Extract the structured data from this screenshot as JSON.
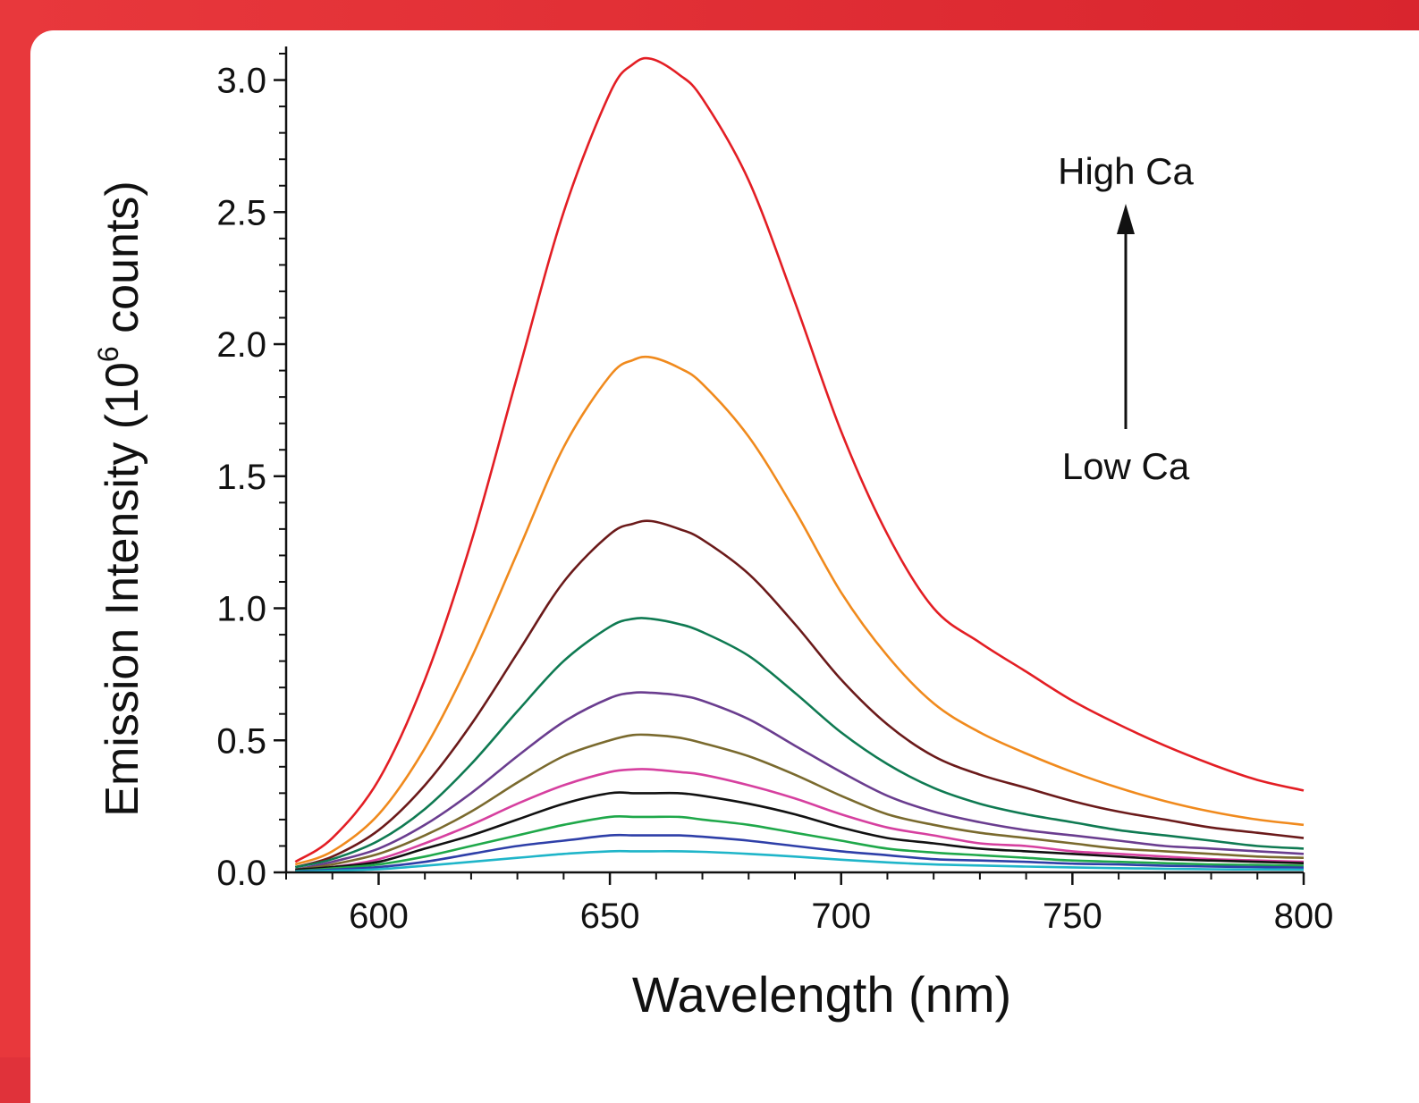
{
  "colors": {
    "frame": "#e0323a",
    "panel": "#ffffff",
    "axis": "#111111"
  },
  "chart_data": {
    "type": "line",
    "xlabel": "Wavelength (nm)",
    "ylabel_main": "Emission Intensity (10",
    "ylabel_sup": "6",
    "ylabel_tail": " counts)",
    "xlim": [
      580,
      800
    ],
    "ylim": [
      0,
      3.1
    ],
    "xticks": [
      600,
      650,
      700,
      750,
      800
    ],
    "xtick_labels": [
      "600",
      "650",
      "700",
      "750",
      "800"
    ],
    "yticks": [
      0,
      0.5,
      1.0,
      1.5,
      2.0,
      2.5,
      3.0
    ],
    "ytick_labels": [
      "0.0",
      "0.5",
      "1.0",
      "1.5",
      "2.0",
      "2.5",
      "3.0"
    ],
    "grid": false,
    "annotations": {
      "high": "High Ca",
      "low": "Low Ca",
      "arrow_direction": "up"
    },
    "x": [
      582,
      590,
      600,
      610,
      620,
      630,
      640,
      650,
      655,
      659,
      665,
      670,
      680,
      690,
      700,
      710,
      720,
      730,
      740,
      750,
      760,
      770,
      780,
      790,
      800
    ],
    "series": [
      {
        "color": "#e31e24",
        "values": [
          0.04,
          0.13,
          0.35,
          0.73,
          1.25,
          1.88,
          2.5,
          2.95,
          3.06,
          3.08,
          3.02,
          2.93,
          2.62,
          2.16,
          1.67,
          1.28,
          1.0,
          0.87,
          0.76,
          0.65,
          0.56,
          0.48,
          0.41,
          0.35,
          0.31
        ]
      },
      {
        "color": "#f08a1d",
        "values": [
          0.03,
          0.08,
          0.22,
          0.47,
          0.81,
          1.21,
          1.61,
          1.88,
          1.94,
          1.95,
          1.91,
          1.85,
          1.65,
          1.37,
          1.06,
          0.82,
          0.64,
          0.53,
          0.45,
          0.38,
          0.32,
          0.27,
          0.23,
          0.2,
          0.18
        ]
      },
      {
        "color": "#6b1a1a",
        "values": [
          0.02,
          0.06,
          0.16,
          0.33,
          0.56,
          0.83,
          1.1,
          1.28,
          1.32,
          1.33,
          1.3,
          1.26,
          1.13,
          0.94,
          0.73,
          0.56,
          0.44,
          0.37,
          0.32,
          0.27,
          0.23,
          0.2,
          0.17,
          0.15,
          0.13
        ]
      },
      {
        "color": "#0f7a52",
        "values": [
          0.02,
          0.05,
          0.12,
          0.24,
          0.41,
          0.61,
          0.8,
          0.93,
          0.96,
          0.96,
          0.94,
          0.91,
          0.82,
          0.68,
          0.53,
          0.41,
          0.32,
          0.26,
          0.22,
          0.19,
          0.16,
          0.14,
          0.12,
          0.1,
          0.09
        ]
      },
      {
        "color": "#6a3d8f",
        "values": [
          0.01,
          0.04,
          0.09,
          0.18,
          0.3,
          0.44,
          0.57,
          0.66,
          0.68,
          0.68,
          0.67,
          0.65,
          0.58,
          0.48,
          0.38,
          0.29,
          0.23,
          0.19,
          0.16,
          0.14,
          0.12,
          0.1,
          0.09,
          0.08,
          0.07
        ]
      },
      {
        "color": "#7a6a2e",
        "values": [
          0.01,
          0.03,
          0.07,
          0.14,
          0.23,
          0.34,
          0.44,
          0.5,
          0.52,
          0.52,
          0.51,
          0.49,
          0.44,
          0.37,
          0.29,
          0.22,
          0.18,
          0.15,
          0.13,
          0.11,
          0.09,
          0.08,
          0.07,
          0.06,
          0.055
        ]
      },
      {
        "color": "#d6409f",
        "values": [
          0.01,
          0.02,
          0.05,
          0.11,
          0.18,
          0.26,
          0.33,
          0.38,
          0.39,
          0.39,
          0.38,
          0.37,
          0.33,
          0.28,
          0.22,
          0.17,
          0.14,
          0.11,
          0.1,
          0.08,
          0.07,
          0.06,
          0.05,
          0.045,
          0.04
        ]
      },
      {
        "color": "#111111",
        "values": [
          0.01,
          0.02,
          0.04,
          0.09,
          0.14,
          0.2,
          0.26,
          0.3,
          0.3,
          0.3,
          0.3,
          0.29,
          0.26,
          0.22,
          0.17,
          0.13,
          0.11,
          0.09,
          0.08,
          0.07,
          0.06,
          0.05,
          0.045,
          0.04,
          0.035
        ]
      },
      {
        "color": "#1fa84a",
        "values": [
          0.005,
          0.015,
          0.03,
          0.06,
          0.1,
          0.14,
          0.18,
          0.21,
          0.21,
          0.21,
          0.21,
          0.2,
          0.18,
          0.15,
          0.12,
          0.09,
          0.075,
          0.065,
          0.055,
          0.045,
          0.04,
          0.035,
          0.03,
          0.028,
          0.025
        ]
      },
      {
        "color": "#2e3fa8",
        "values": [
          0.004,
          0.01,
          0.02,
          0.04,
          0.07,
          0.1,
          0.12,
          0.14,
          0.14,
          0.14,
          0.14,
          0.135,
          0.12,
          0.1,
          0.08,
          0.065,
          0.05,
          0.045,
          0.04,
          0.033,
          0.03,
          0.025,
          0.022,
          0.02,
          0.018
        ]
      },
      {
        "color": "#1fb5c9",
        "values": [
          0.003,
          0.006,
          0.012,
          0.025,
          0.04,
          0.055,
          0.07,
          0.08,
          0.08,
          0.08,
          0.08,
          0.078,
          0.07,
          0.06,
          0.048,
          0.038,
          0.03,
          0.026,
          0.022,
          0.019,
          0.016,
          0.014,
          0.012,
          0.011,
          0.01
        ]
      }
    ]
  }
}
